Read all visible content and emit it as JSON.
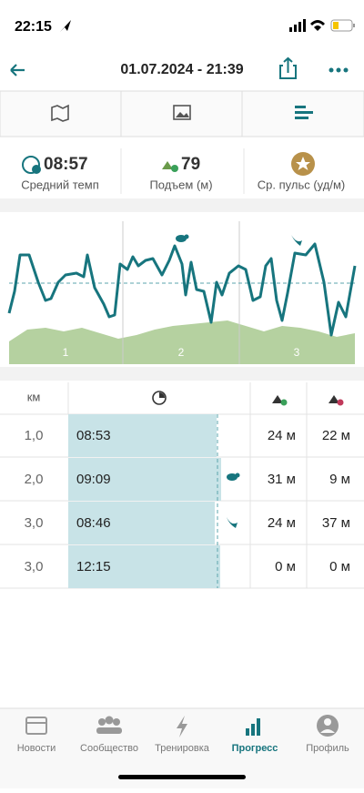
{
  "status": {
    "time": "22:15"
  },
  "header": {
    "title": "01.07.2024 - 21:39"
  },
  "stats": [
    {
      "value": "08:57",
      "label": "Средний темп"
    },
    {
      "value": "79",
      "label": "Подъем (м)"
    },
    {
      "label": "Ср. пульс (уд/м)"
    }
  ],
  "chart_segments": [
    "1",
    "2",
    "3"
  ],
  "table": {
    "header": {
      "km": "км"
    },
    "rows": [
      [
        "1,0",
        "08:53",
        "24 м",
        "22 м"
      ],
      [
        "2,0",
        "09:09",
        "31 м",
        "9 м"
      ],
      [
        "3,0",
        "08:46",
        "24 м",
        "37 м"
      ],
      [
        "3,0",
        "12:15",
        "0 м",
        "0 м"
      ]
    ]
  },
  "nav": [
    "Новости",
    "Сообщество",
    "Тренировка",
    "Прогресс",
    "Профиль"
  ]
}
